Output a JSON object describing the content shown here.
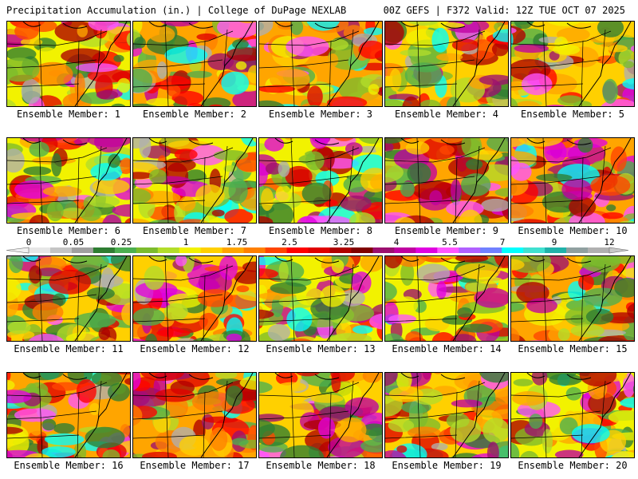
{
  "header": {
    "left": "Precipitation Accumulation (in.) | College of DuPage NEXLAB",
    "right": "00Z GEFS | F372 Valid: 12Z TUE OCT 07 2025"
  },
  "member_label": "Ensemble Member:",
  "members": [
    1,
    2,
    3,
    4,
    5,
    6,
    7,
    8,
    9,
    10,
    11,
    12,
    13,
    14,
    15,
    16,
    17,
    18,
    19,
    20
  ],
  "colorbar": {
    "tick_labels": [
      "0",
      "0.05",
      "0.25",
      "1",
      "1.75",
      "2.5",
      "3.25",
      "4",
      "5.5",
      "7",
      "9",
      "12"
    ],
    "colors": [
      "#e6e6e6",
      "#c4c4c4",
      "#a0a0a0",
      "#2e7d32",
      "#4caf50",
      "#7cbb2d",
      "#b2dd2a",
      "#f2f200",
      "#ffd000",
      "#ffa500",
      "#ff7f00",
      "#ff4500",
      "#ff0000",
      "#e00000",
      "#b00000",
      "#800000",
      "#9c0f6f",
      "#c000a0",
      "#e000e0",
      "#ff55ff",
      "#b060ff",
      "#7080ff",
      "#00ffff",
      "#40e0d0",
      "#20b2aa",
      "#90a0a0",
      "#b0b0b0"
    ]
  }
}
